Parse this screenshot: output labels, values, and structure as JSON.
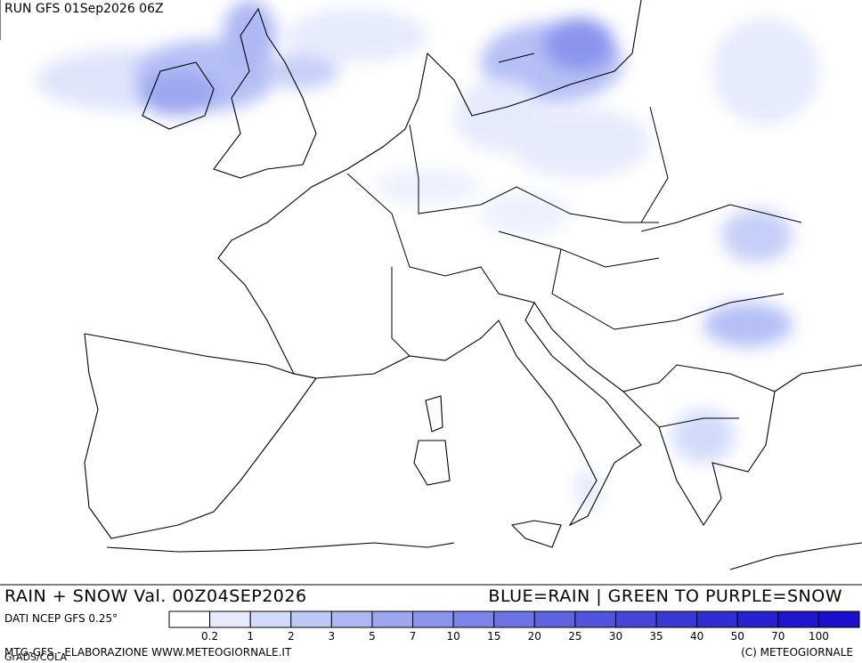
{
  "header": {
    "run": "RUN GFS 01Sep2026 06Z"
  },
  "footer": {
    "product": "RAIN + SNOW Val. 00Z04SEP2026",
    "legend_note": "BLUE=RAIN | GREEN TO PURPLE=SNOW",
    "source": "DATI NCEP GFS 0.25°",
    "credit_left": "MTG-GFS - ELABORAZIONE WWW.METEOGIORNALE.IT",
    "grads": "GrADS/COLA",
    "credit_right": "(C) METEOGIORNALE"
  },
  "legend": {
    "ticks": [
      0.2,
      1,
      2,
      3,
      5,
      7,
      10,
      15,
      20,
      25,
      30,
      35,
      40,
      50,
      70,
      100
    ],
    "colors": [
      "#ffffff",
      "#e6ebfc",
      "#d2dbfa",
      "#bfc9f6",
      "#aeb8f3",
      "#9ca7f0",
      "#8b95ec",
      "#7b84e8",
      "#6c73e4",
      "#5e63e0",
      "#5154dc",
      "#4546d9",
      "#3a39d6",
      "#302dd3",
      "#2722d0",
      "#1f17cd",
      "#1a10cc"
    ]
  }
}
